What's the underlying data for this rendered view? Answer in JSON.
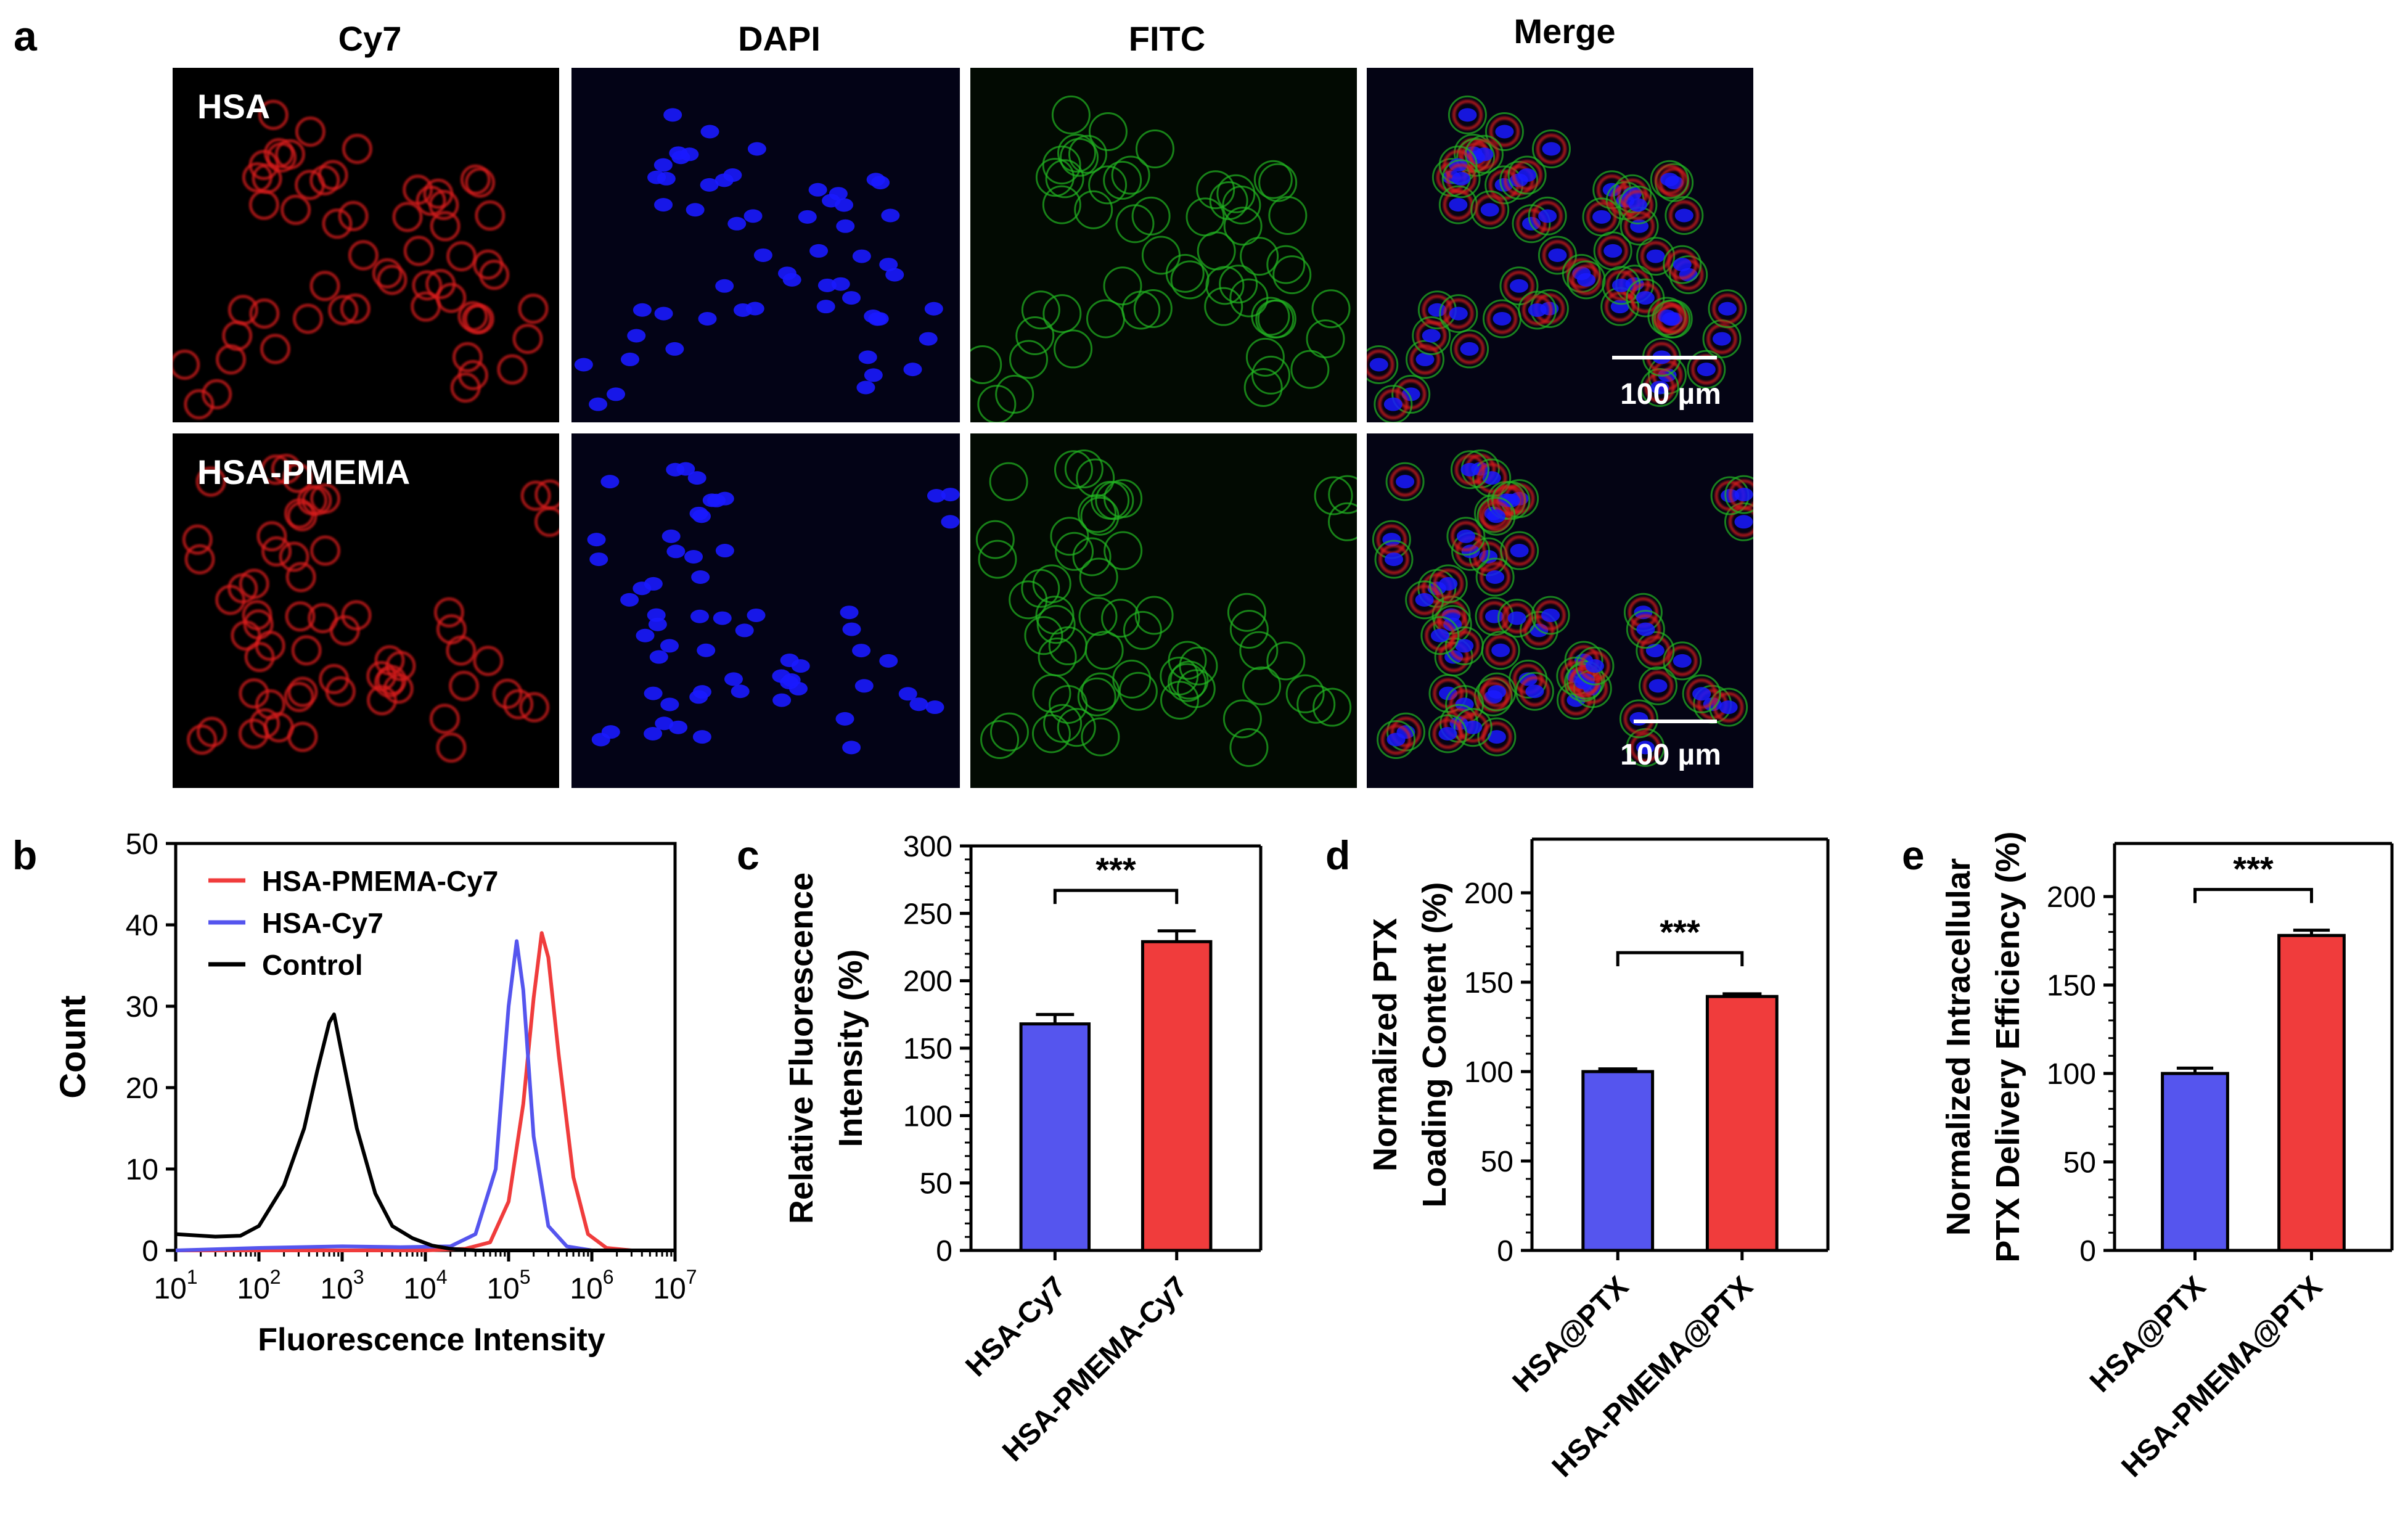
{
  "panel_a": {
    "letter": "a",
    "columns": [
      "Cy7",
      "DAPI",
      "FITC",
      "Merge"
    ],
    "rows": [
      "HSA",
      "HSA-PMEMA"
    ],
    "scale_bar_label": "100 µm",
    "colors": {
      "Cy7": "#d81a1a",
      "DAPI": "#1a1aff",
      "FITC": "#22b522"
    }
  },
  "chart_data": [
    {
      "id": "b",
      "letter": "b",
      "type": "line",
      "xlabel": "Fluorescence Intensity",
      "ylabel": "Count",
      "xscale": "log",
      "xlim": [
        10,
        10000000
      ],
      "ylim": [
        0,
        50
      ],
      "xticks": [
        {
          "value": 10,
          "base": "10",
          "exp": "1"
        },
        {
          "value": 100,
          "base": "10",
          "exp": "2"
        },
        {
          "value": 1000,
          "base": "10",
          "exp": "3"
        },
        {
          "value": 10000,
          "base": "10",
          "exp": "4"
        },
        {
          "value": 100000,
          "base": "10",
          "exp": "5"
        },
        {
          "value": 1000000,
          "base": "10",
          "exp": "6"
        },
        {
          "value": 10000000,
          "base": "10",
          "exp": "7"
        }
      ],
      "yticks": [
        0,
        10,
        20,
        30,
        40,
        50
      ],
      "legend_position": "top-left",
      "series": [
        {
          "name": "HSA-PMEMA-Cy7",
          "color": "#f03c3c",
          "points": [
            [
              10,
              0
            ],
            [
              10000,
              0
            ],
            [
              30000,
              0.2
            ],
            [
              60000,
              1
            ],
            [
              100000,
              6
            ],
            [
              150000,
              18
            ],
            [
              200000,
              31
            ],
            [
              250000,
              39
            ],
            [
              300000,
              36
            ],
            [
              400000,
              24
            ],
            [
              600000,
              9
            ],
            [
              900000,
              2
            ],
            [
              1500000,
              0.3
            ],
            [
              3000000,
              0
            ],
            [
              10000000,
              0
            ]
          ]
        },
        {
          "name": "HSA-Cy7",
          "color": "#5555ee",
          "points": [
            [
              10,
              0
            ],
            [
              100,
              0.3
            ],
            [
              1000,
              0.5
            ],
            [
              5000,
              0.4
            ],
            [
              20000,
              0.5
            ],
            [
              40000,
              2
            ],
            [
              70000,
              10
            ],
            [
              100000,
              30
            ],
            [
              125000,
              38
            ],
            [
              150000,
              32
            ],
            [
              200000,
              14
            ],
            [
              300000,
              3
            ],
            [
              500000,
              0.5
            ],
            [
              1000000,
              0
            ],
            [
              10000000,
              0
            ]
          ]
        },
        {
          "name": "Control",
          "color": "#000000",
          "points": [
            [
              10,
              2
            ],
            [
              30,
              1.7
            ],
            [
              60,
              1.8
            ],
            [
              100,
              3
            ],
            [
              200,
              8
            ],
            [
              350,
              15
            ],
            [
              500,
              22
            ],
            [
              700,
              28
            ],
            [
              800,
              29
            ],
            [
              1000,
              24
            ],
            [
              1500,
              15
            ],
            [
              2500,
              7
            ],
            [
              4000,
              3
            ],
            [
              7000,
              1.5
            ],
            [
              12000,
              0.6
            ],
            [
              20000,
              0.2
            ],
            [
              40000,
              0
            ],
            [
              10000000,
              0
            ]
          ]
        }
      ]
    },
    {
      "id": "c",
      "letter": "c",
      "type": "bar",
      "ylabel": [
        "Relative Fluorescence",
        "Intensity (%)"
      ],
      "categories": [
        "HSA-Cy7",
        "HSA-PMEMA-Cy7"
      ],
      "values": [
        168,
        229
      ],
      "errors": [
        7,
        8
      ],
      "colors": [
        "#5555ee",
        "#f03c3c"
      ],
      "ylim": [
        0,
        300
      ],
      "yticks": [
        0,
        50,
        100,
        150,
        200,
        250,
        300
      ],
      "significance": "***"
    },
    {
      "id": "d",
      "letter": "d",
      "type": "bar",
      "ylabel": [
        "Normalized PTX",
        "Loading Content (%)"
      ],
      "categories": [
        "HSA@PTX",
        "HSA-PMEMA@PTX"
      ],
      "values": [
        100,
        142
      ],
      "errors": [
        1.5,
        1.5
      ],
      "colors": [
        "#5555ee",
        "#f03c3c"
      ],
      "ylim": [
        0,
        230
      ],
      "yticks": [
        0,
        50,
        100,
        150,
        200
      ],
      "significance": "***"
    },
    {
      "id": "e",
      "letter": "e",
      "type": "bar",
      "ylabel": [
        "Normalized Intracellular",
        "PTX Delivery Efficiency  (%)"
      ],
      "categories": [
        "HSA@PTX",
        "HSA-PMEMA@PTX"
      ],
      "values": [
        100,
        178
      ],
      "errors": [
        3,
        3
      ],
      "colors": [
        "#5555ee",
        "#f03c3c"
      ],
      "ylim": [
        0,
        230
      ],
      "yticks": [
        0,
        50,
        100,
        150,
        200
      ],
      "significance": "***"
    }
  ]
}
